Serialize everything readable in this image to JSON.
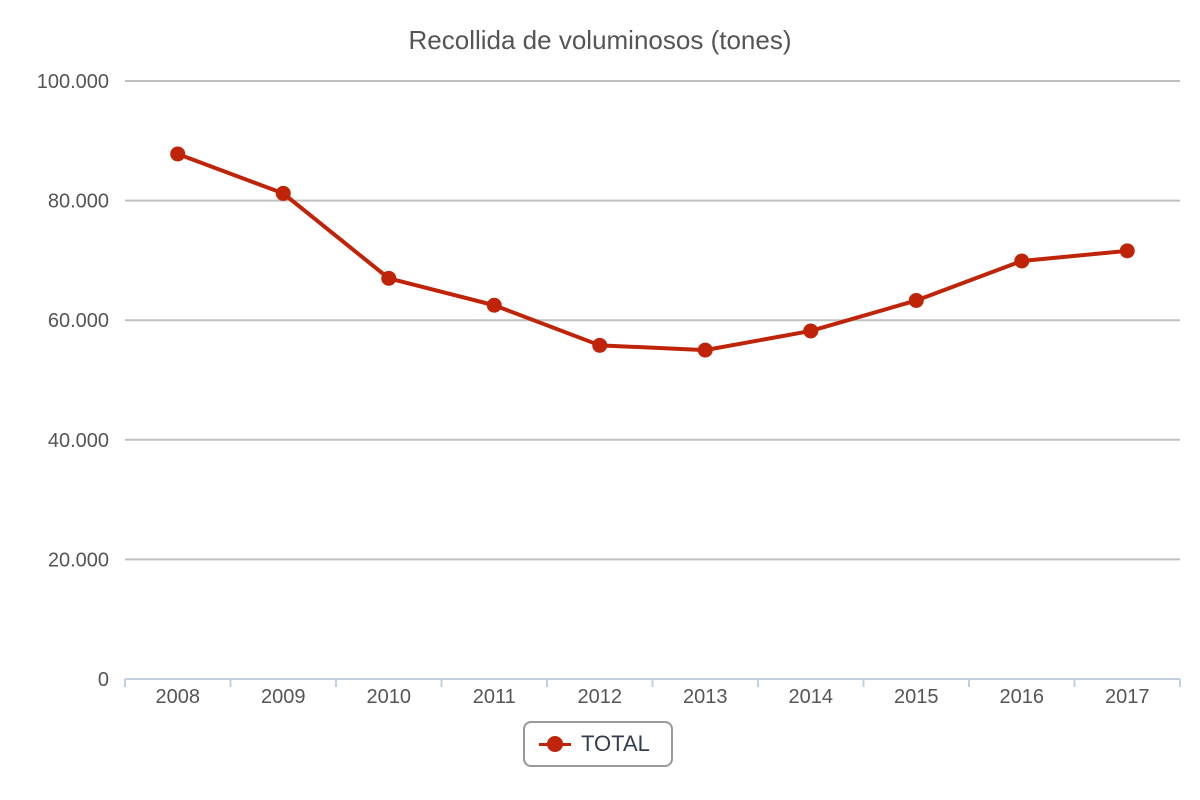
{
  "chart_data": {
    "type": "line",
    "title": "Recollida de voluminosos (tones)",
    "categories": [
      "2008",
      "2009",
      "2010",
      "2011",
      "2012",
      "2013",
      "2014",
      "2015",
      "2016",
      "2017"
    ],
    "series": [
      {
        "name": "TOTAL",
        "color": "#c02408",
        "values": [
          87800,
          81200,
          67000,
          62500,
          55800,
          55000,
          58200,
          63300,
          69900,
          71600
        ]
      }
    ],
    "yticks": [
      0,
      20000,
      40000,
      60000,
      80000,
      100000
    ],
    "ytick_labels": [
      "0",
      "20.000",
      "40.000",
      "60.000",
      "80.000",
      "100.000"
    ],
    "ylim": [
      0,
      100000
    ],
    "grid": true,
    "legend_position": "bottom-center"
  }
}
